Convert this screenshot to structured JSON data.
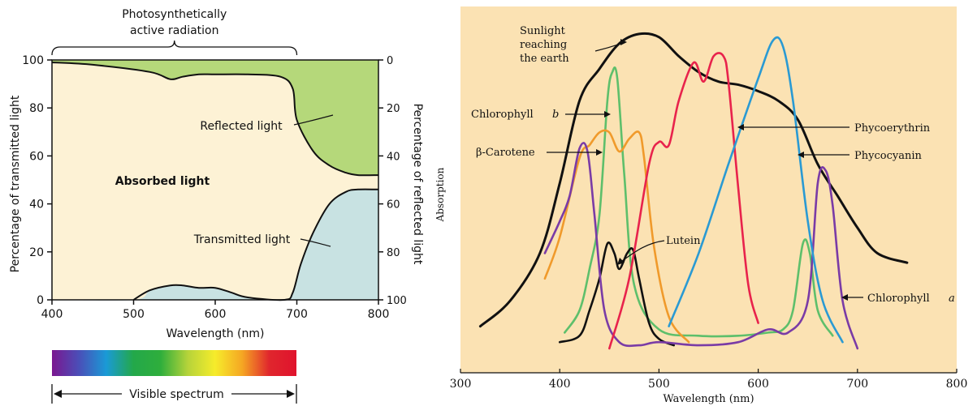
{
  "chart_data": [
    {
      "type": "area",
      "top_label": "Photosynthetically active radiation",
      "top_label_lines": [
        "Photosynthetically",
        "active radiation"
      ],
      "xlabel": "Wavelength (nm)",
      "ylabel_left": "Percentage of transmitted light",
      "ylabel_right": "Percentage of reflected light",
      "xlim": [
        400,
        800
      ],
      "ylim": [
        0,
        100
      ],
      "x_ticks": [
        "400",
        "500",
        "600",
        "700",
        "800"
      ],
      "y_ticks_left": [
        "0",
        "20",
        "40",
        "60",
        "80",
        "100"
      ],
      "y_ticks_right": [
        "100",
        "80",
        "60",
        "40",
        "20",
        "0"
      ],
      "series": [
        {
          "name": "Reflected light",
          "color": "#b5d87a",
          "x": [
            400,
            450,
            520,
            545,
            560,
            580,
            600,
            640,
            680,
            695,
            700,
            720,
            740,
            760,
            775,
            800
          ],
          "y": [
            1,
            2,
            5,
            8,
            7,
            6,
            6,
            6,
            7,
            12,
            25,
            38,
            44,
            47,
            48,
            48
          ]
        },
        {
          "name": "Transmitted light",
          "color": "#c8e2e2",
          "x": [
            400,
            500,
            520,
            545,
            560,
            580,
            600,
            620,
            640,
            685,
            695,
            705,
            720,
            740,
            760,
            775,
            800
          ],
          "y": [
            0,
            0,
            4,
            6,
            6,
            5,
            5,
            3,
            1,
            0,
            3,
            15,
            28,
            40,
            45,
            46,
            46
          ]
        }
      ],
      "region_labels": [
        "Absorbed light",
        "Reflected light",
        "Transmitted light"
      ],
      "spectrum": {
        "label": "Visible spectrum",
        "colors": [
          "#7b1790",
          "#4a4fb8",
          "#1a9ad6",
          "#23a84a",
          "#2fae3c",
          "#b6d33a",
          "#f6ec2b",
          "#f5a623",
          "#e0262d",
          "#e0132d"
        ]
      }
    },
    {
      "type": "line",
      "xlabel": "Wavelength (nm)",
      "ylabel": "Absorption",
      "xlim": [
        300,
        800
      ],
      "ylim": [
        0,
        100
      ],
      "x_ticks": [
        "300",
        "400",
        "500",
        "600",
        "700",
        "800"
      ],
      "series": [
        {
          "name": "Sunlight reaching the earth",
          "color": "#111111",
          "x": [
            320,
            350,
            380,
            400,
            420,
            440,
            460,
            480,
            500,
            520,
            540,
            560,
            580,
            600,
            620,
            640,
            660,
            680,
            700,
            720,
            750
          ],
          "y": [
            7,
            15,
            30,
            52,
            78,
            88,
            96,
            99,
            98,
            92,
            87,
            84,
            83,
            81,
            78,
            72,
            58,
            48,
            38,
            30,
            27
          ]
        },
        {
          "name": "Chlorophyll b",
          "color": "#5ebf6b",
          "x": [
            405,
            420,
            430,
            440,
            448,
            453,
            458,
            465,
            475,
            500,
            540,
            580,
            610,
            625,
            635,
            645,
            652,
            660,
            675
          ],
          "y": [
            5,
            12,
            25,
            42,
            78,
            87,
            85,
            55,
            20,
            6,
            4,
            4,
            5,
            6,
            12,
            33,
            30,
            12,
            4
          ]
        },
        {
          "name": "β-Carotene",
          "color": "#f09a2b",
          "x": [
            385,
            400,
            420,
            430,
            440,
            450,
            460,
            470,
            480,
            485,
            495,
            510,
            530
          ],
          "y": [
            22,
            35,
            60,
            64,
            68,
            68,
            62,
            66,
            68,
            60,
            32,
            10,
            2
          ]
        },
        {
          "name": "Lutein",
          "color": "#111111",
          "x": [
            400,
            420,
            430,
            440,
            448,
            455,
            460,
            468,
            474,
            480,
            490,
            500,
            515
          ],
          "y": [
            2,
            4,
            12,
            22,
            33,
            30,
            25,
            30,
            31,
            22,
            8,
            3,
            1
          ]
        },
        {
          "name": "Chlorophyll a",
          "color": "#7a3ba6",
          "x": [
            385,
            400,
            410,
            420,
            428,
            435,
            445,
            460,
            480,
            500,
            540,
            580,
            610,
            630,
            650,
            660,
            668,
            675,
            685,
            700
          ],
          "y": [
            30,
            40,
            48,
            63,
            62,
            42,
            12,
            2,
            1,
            2,
            1,
            2,
            6,
            5,
            15,
            52,
            56,
            45,
            15,
            0
          ]
        },
        {
          "name": "Phycoerythrin",
          "color": "#e8234c",
          "x": [
            450,
            470,
            490,
            500,
            510,
            520,
            535,
            545,
            555,
            565,
            570,
            580,
            590,
            600
          ],
          "y": [
            0,
            22,
            58,
            65,
            64,
            78,
            90,
            84,
            92,
            92,
            84,
            50,
            20,
            8
          ]
        },
        {
          "name": "Phycocyanin",
          "color": "#2a9ad3",
          "x": [
            510,
            540,
            570,
            600,
            615,
            625,
            635,
            650,
            665,
            685
          ],
          "y": [
            7,
            30,
            58,
            85,
            97,
            95,
            78,
            40,
            15,
            2
          ]
        }
      ],
      "annotations": [
        "Sunlight reaching the earth",
        "Chlorophyll b",
        "β-Carotene",
        "Lutein",
        "Phycoerythrin",
        "Phycocyanin",
        "Chlorophyll a"
      ],
      "annotation_lines": {
        "sun": [
          "Sunlight",
          "reaching",
          "the earth"
        ],
        "chl_b_prefix": "Chlorophyll ",
        "chl_b_suffix": "b",
        "carotene": "β-Carotene",
        "lutein": "Lutein",
        "phycoerythrin": "Phycoerythrin",
        "phycocyanin": "Phycocyanin",
        "chl_a_prefix": "Chlorophyll ",
        "chl_a_suffix": "a"
      }
    }
  ]
}
